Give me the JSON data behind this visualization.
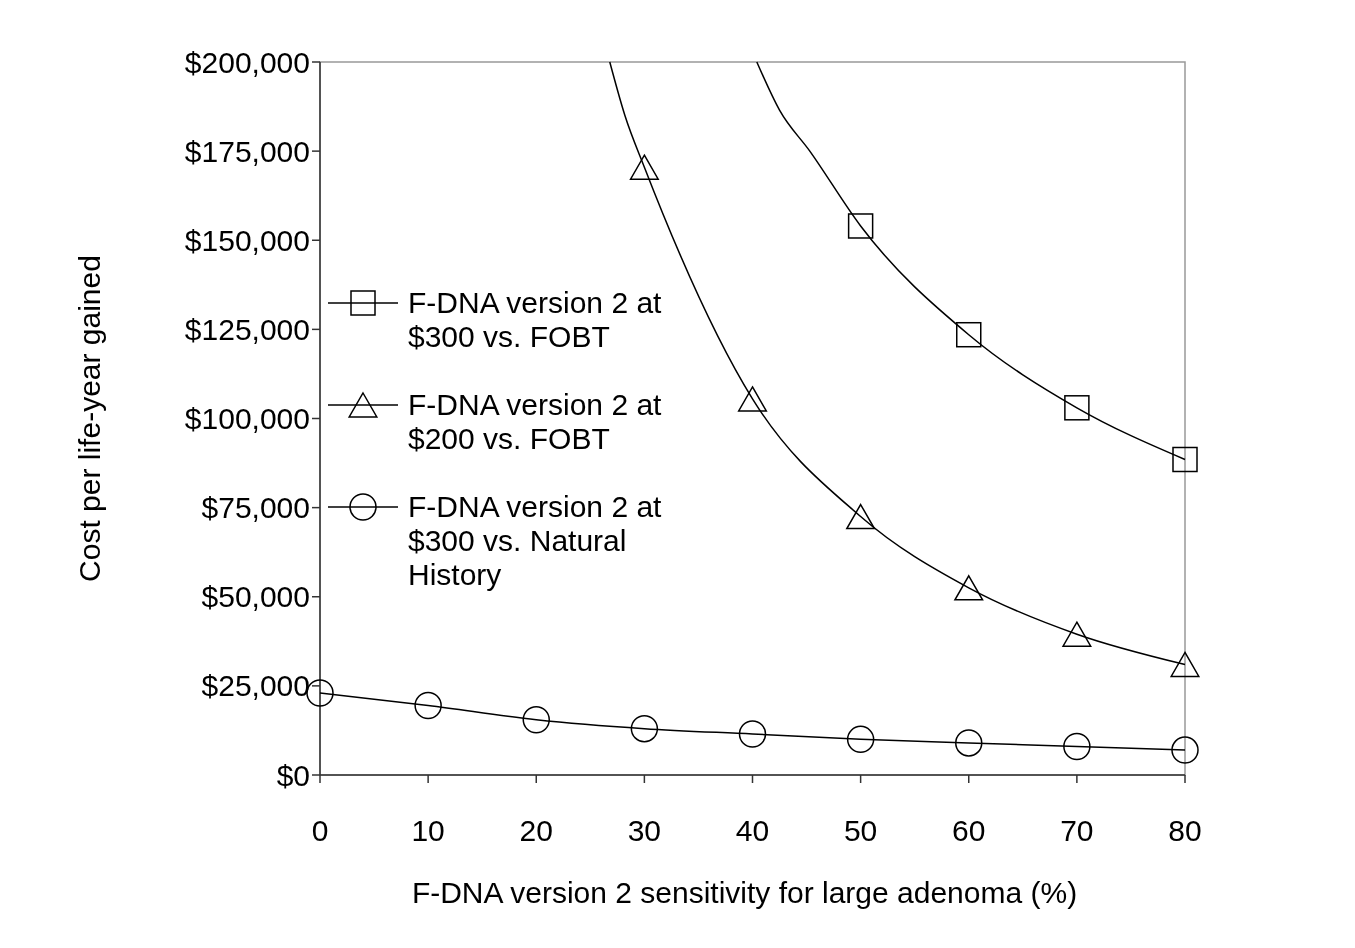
{
  "chart_data": {
    "type": "line",
    "xlabel": "F-DNA version 2 sensitivity for large adenoma (%)",
    "ylabel": "Cost per life-year gained",
    "xlim": [
      0,
      80
    ],
    "xticks": [
      0,
      10,
      20,
      30,
      40,
      50,
      60,
      70,
      80
    ],
    "ylim": [
      0,
      200000
    ],
    "yticks": [
      {
        "value": 0,
        "label": "$0"
      },
      {
        "value": 25000,
        "label": "$25,000"
      },
      {
        "value": 50000,
        "label": "$50,000"
      },
      {
        "value": 75000,
        "label": "$75,000"
      },
      {
        "value": 100000,
        "label": "$100,000"
      },
      {
        "value": 125000,
        "label": "$125,000"
      },
      {
        "value": 150000,
        "label": "$150,000"
      },
      {
        "value": 175000,
        "label": "$175,000"
      },
      {
        "value": 200000,
        "label": "$200,000"
      }
    ],
    "grid": false,
    "legend": "left",
    "line_style": "solid",
    "series": [
      {
        "name": "F-DNA version 2 at $300 vs. FOBT",
        "color": "#000000",
        "marker": "square",
        "x": [
          40.4,
          42.5,
          45.3,
          50,
          60,
          70,
          80
        ],
        "values": [
          200000,
          186500,
          175000,
          154000,
          123500,
          103000,
          88500
        ]
      },
      {
        "name": "F-DNA version 2 at $200 vs. FOBT",
        "color": "#000000",
        "marker": "triangle",
        "x": [
          26.8,
          28.2,
          30,
          40,
          50,
          60,
          70,
          80
        ],
        "values": [
          200000,
          185000,
          170500,
          105500,
          72500,
          52500,
          39500,
          31000
        ]
      },
      {
        "name": "F-DNA version 2 at $300 vs. Natural History",
        "color": "#000000",
        "marker": "circle",
        "x": [
          0,
          10,
          20,
          30,
          40,
          50,
          60,
          70,
          80
        ],
        "values": [
          23000,
          19500,
          15500,
          13000,
          11500,
          10000,
          9000,
          8000,
          7000
        ]
      }
    ]
  }
}
